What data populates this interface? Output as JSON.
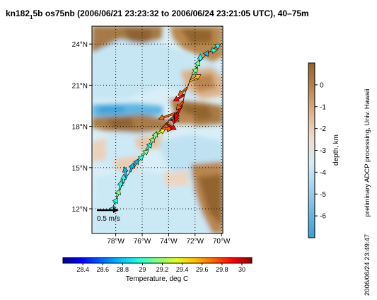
{
  "title": {
    "pre": "kn182",
    "sub": "1",
    "post": "5b os75nb (2006/06/21 23:23:32 to 2006/06/24 23:21:05 UTC), 40–75m"
  },
  "chart_data": {
    "type": "scatter",
    "map": {
      "lon_ticks": [
        -78,
        -76,
        -74,
        -72,
        -70
      ],
      "lon_tick_labels": [
        "78°W",
        "76°W",
        "74°W",
        "72°W",
        "70°W"
      ],
      "lat_ticks": [
        12,
        15,
        18,
        21,
        24
      ],
      "lat_tick_labels": [
        "12°N",
        "15°N",
        "18°N",
        "21°N",
        "24°N"
      ],
      "lon_range": [
        -79.8,
        -69.9
      ],
      "lat_range": [
        10.2,
        25.3
      ],
      "grid": true
    },
    "scale_arrow": {
      "label": "0.5 m/s",
      "speed": 0.5
    },
    "depth_colorbar": {
      "label": "depth, km",
      "ticks": [
        0,
        -1,
        -2,
        -3,
        -4,
        -5,
        -6
      ],
      "range": [
        -7,
        1
      ],
      "colors": [
        "#3a9fd8",
        "#6db8e3",
        "#a2d3ee",
        "#d4ecf6",
        "#f3dccb",
        "#dcb48a",
        "#b98650",
        "#93652e"
      ]
    },
    "temperature_colorbar": {
      "label": "Temperature, deg C",
      "ticks": [
        28.4,
        28.6,
        28.8,
        29,
        29.2,
        29.4,
        29.6,
        29.8,
        30
      ],
      "tick_labels": [
        "28.4",
        "28.6",
        "28.8",
        "29",
        "29.2",
        "29.4",
        "29.6",
        "29.8",
        "30"
      ],
      "range": [
        28.2,
        30.1
      ],
      "colors": [
        "#00008f",
        "#0000ff",
        "#0060ff",
        "#00bfff",
        "#20ffdf",
        "#80ff80",
        "#dfff20",
        "#ffbf00",
        "#ff6000",
        "#ff0000",
        "#8f0000"
      ]
    },
    "track": [
      {
        "lon": -78.3,
        "lat": 11.9,
        "temp": 29.0,
        "dir": 40,
        "speed": 0.12
      },
      {
        "lon": -78.1,
        "lat": 12.4,
        "temp": 29.0,
        "dir": 30,
        "speed": 0.15
      },
      {
        "lon": -77.9,
        "lat": 12.9,
        "temp": 29.1,
        "dir": 20,
        "speed": 0.18
      },
      {
        "lon": -77.7,
        "lat": 13.4,
        "temp": 29.0,
        "dir": 10,
        "speed": 0.22
      },
      {
        "lon": -77.4,
        "lat": 13.9,
        "temp": 28.9,
        "dir": 0,
        "speed": 0.2
      },
      {
        "lon": -77.2,
        "lat": 14.3,
        "temp": 28.8,
        "dir": 350,
        "speed": 0.25
      },
      {
        "lon": -76.9,
        "lat": 14.7,
        "temp": 28.7,
        "dir": 20,
        "speed": 0.22
      },
      {
        "lon": -76.6,
        "lat": 15.1,
        "temp": 28.8,
        "dir": 30,
        "speed": 0.2
      },
      {
        "lon": -76.3,
        "lat": 15.5,
        "temp": 29.0,
        "dir": 45,
        "speed": 0.18
      },
      {
        "lon": -76.0,
        "lat": 15.9,
        "temp": 29.1,
        "dir": 50,
        "speed": 0.2
      },
      {
        "lon": -75.7,
        "lat": 16.3,
        "temp": 29.0,
        "dir": 40,
        "speed": 0.22
      },
      {
        "lon": -75.4,
        "lat": 16.7,
        "temp": 29.1,
        "dir": 30,
        "speed": 0.2
      },
      {
        "lon": -75.1,
        "lat": 17.1,
        "temp": 29.2,
        "dir": 20,
        "speed": 0.18
      },
      {
        "lon": -74.8,
        "lat": 17.5,
        "temp": 29.4,
        "dir": 60,
        "speed": 0.2
      },
      {
        "lon": -74.5,
        "lat": 17.9,
        "temp": 29.7,
        "dir": 100,
        "speed": 0.25
      },
      {
        "lon": -74.2,
        "lat": 18.2,
        "temp": 29.9,
        "dir": 120,
        "speed": 0.28
      },
      {
        "lon": -73.9,
        "lat": 18.5,
        "temp": 29.8,
        "dir": 100,
        "speed": 0.22
      },
      {
        "lon": -73.6,
        "lat": 18.8,
        "temp": 29.9,
        "dir": 180,
        "speed": 0.2
      },
      {
        "lon": -73.4,
        "lat": 19.0,
        "temp": 29.8,
        "dir": 250,
        "speed": 0.45
      },
      {
        "lon": -73.2,
        "lat": 19.2,
        "temp": 29.9,
        "dir": 200,
        "speed": 0.3
      },
      {
        "lon": -73.0,
        "lat": 19.5,
        "temp": 30.0,
        "dir": 210,
        "speed": 0.35
      },
      {
        "lon": -72.9,
        "lat": 19.8,
        "temp": 29.8,
        "dir": 220,
        "speed": 0.25
      },
      {
        "lon": -72.8,
        "lat": 20.3,
        "temp": 30.0,
        "dir": 240,
        "speed": 0.3
      },
      {
        "lon": -72.6,
        "lat": 20.8,
        "temp": 29.7,
        "dir": 230,
        "speed": 0.28
      },
      {
        "lon": -72.4,
        "lat": 21.3,
        "temp": 29.6,
        "dir": 60,
        "speed": 0.3
      },
      {
        "lon": -72.2,
        "lat": 21.8,
        "temp": 29.2,
        "dir": 40,
        "speed": 0.2
      },
      {
        "lon": -71.9,
        "lat": 22.3,
        "temp": 29.1,
        "dir": 20,
        "speed": 0.18
      },
      {
        "lon": -71.6,
        "lat": 22.8,
        "temp": 28.9,
        "dir": 0,
        "speed": 0.15
      },
      {
        "lon": -71.2,
        "lat": 23.2,
        "temp": 28.8,
        "dir": 30,
        "speed": 0.12
      },
      {
        "lon": -70.8,
        "lat": 23.5,
        "temp": 29.0,
        "dir": 80,
        "speed": 0.15
      },
      {
        "lon": -70.4,
        "lat": 23.8,
        "temp": 29.0,
        "dir": 60,
        "speed": 0.12
      }
    ]
  },
  "side_notes": {
    "processing": "preliminary ADCP processing,  Univ. Hawaii",
    "timestamp": "2006/06/24 23:49:47"
  }
}
